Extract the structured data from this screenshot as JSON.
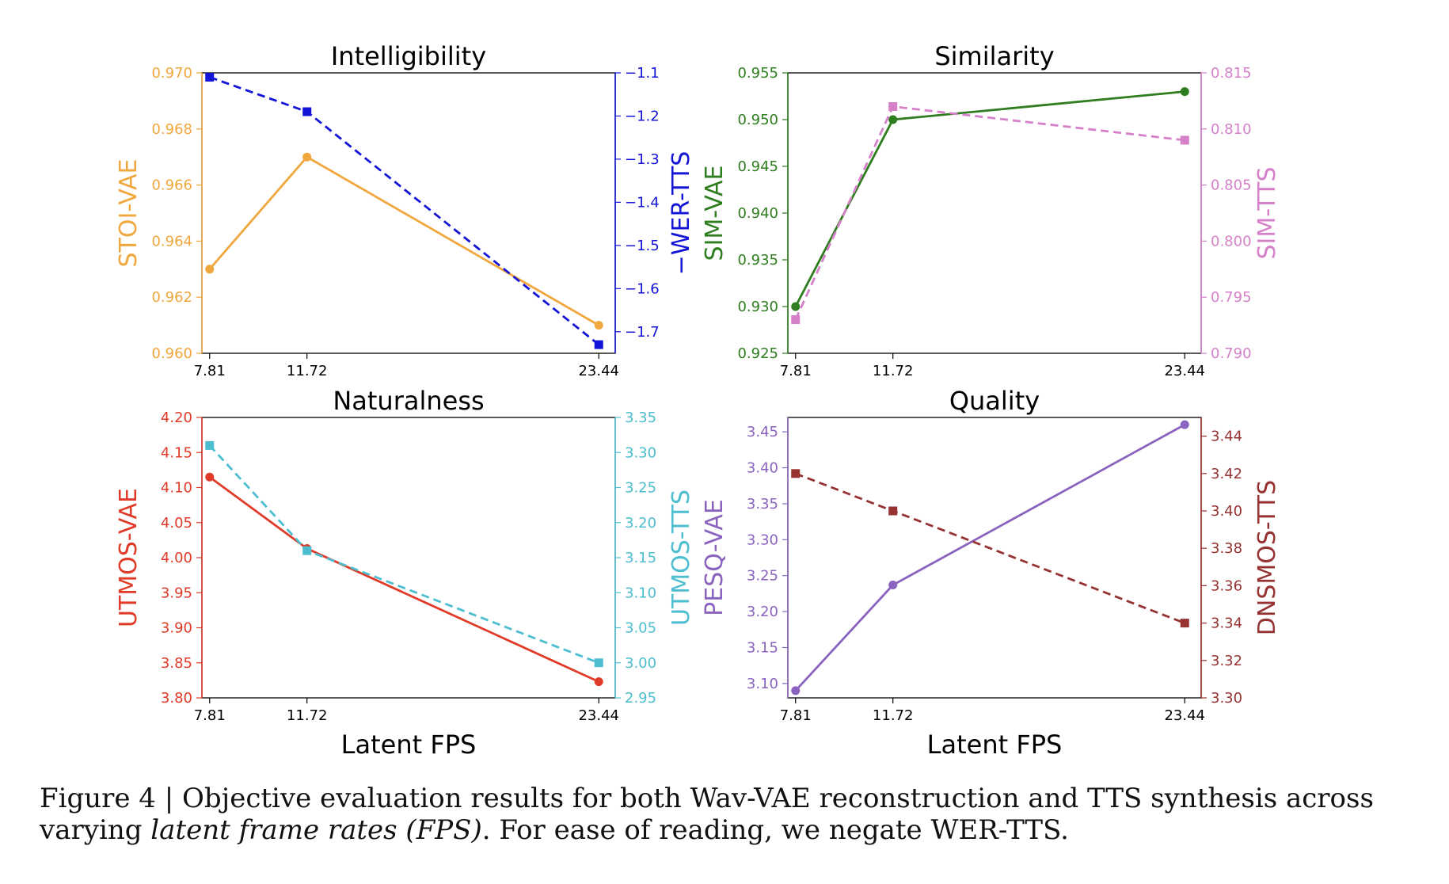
{
  "x_tick_labels": [
    "7.81",
    "11.72",
    "23.44"
  ],
  "x_values": [
    7.81,
    11.72,
    23.44
  ],
  "xlabel": "Latent FPS",
  "caption": {
    "lead": "Figure 4 | Objective evaluation results for both Wav-VAE reconstruction and TTS synthesis across varying ",
    "italic": "latent frame rates (FPS)",
    "tail": ". For ease of reading, we negate WER-TTS."
  },
  "chart_data": [
    {
      "type": "line",
      "title": "Intelligibility",
      "x": [
        7.81,
        11.72,
        23.44
      ],
      "xlim": [
        7.5,
        24.1
      ],
      "left": {
        "name": "STOI-VAE",
        "color": "#f0a73d",
        "dashed": false,
        "marker": "circle",
        "values": [
          0.963,
          0.967,
          0.961
        ],
        "ylim": [
          0.96,
          0.97
        ],
        "ticks": [
          0.96,
          0.962,
          0.964,
          0.966,
          0.968,
          0.97
        ],
        "tick_labels": [
          "0.960",
          "0.962",
          "0.964",
          "0.966",
          "0.968",
          "0.970"
        ]
      },
      "right": {
        "name": "−WER-TTS",
        "color": "#1414d6",
        "dashed": true,
        "marker": "square",
        "values": [
          -1.11,
          -1.19,
          -1.73
        ],
        "ylim": [
          -1.75,
          -1.1
        ],
        "ticks": [
          -1.1,
          -1.2,
          -1.3,
          -1.4,
          -1.5,
          -1.6,
          -1.7
        ],
        "tick_labels": [
          "−1.1",
          "−1.2",
          "−1.3",
          "−1.4",
          "−1.5",
          "−1.6",
          "−1.7"
        ]
      }
    },
    {
      "type": "line",
      "title": "Similarity",
      "x": [
        7.81,
        11.72,
        23.44
      ],
      "xlim": [
        7.5,
        24.1
      ],
      "left": {
        "name": "SIM-VAE",
        "color": "#2e7d1f",
        "dashed": false,
        "marker": "circle",
        "values": [
          0.93,
          0.95,
          0.953
        ],
        "ylim": [
          0.925,
          0.955
        ],
        "ticks": [
          0.925,
          0.93,
          0.935,
          0.94,
          0.945,
          0.95,
          0.955
        ],
        "tick_labels": [
          "0.925",
          "0.930",
          "0.935",
          "0.940",
          "0.945",
          "0.950",
          "0.955"
        ]
      },
      "right": {
        "name": "SIM-TTS",
        "color": "#d580c8",
        "dashed": true,
        "marker": "square",
        "values": [
          0.793,
          0.812,
          0.809
        ],
        "ylim": [
          0.79,
          0.815
        ],
        "ticks": [
          0.79,
          0.795,
          0.8,
          0.805,
          0.81,
          0.815
        ],
        "tick_labels": [
          "0.790",
          "0.795",
          "0.800",
          "0.805",
          "0.810",
          "0.815"
        ]
      }
    },
    {
      "type": "line",
      "title": "Naturalness",
      "x": [
        7.81,
        11.72,
        23.44
      ],
      "xlim": [
        7.5,
        24.1
      ],
      "left": {
        "name": "UTMOS-VAE",
        "color": "#e03a28",
        "dashed": false,
        "marker": "circle",
        "values": [
          4.115,
          4.013,
          3.823
        ],
        "ylim": [
          3.8,
          4.2
        ],
        "ticks": [
          3.8,
          3.85,
          3.9,
          3.95,
          4.0,
          4.05,
          4.1,
          4.15,
          4.2
        ],
        "tick_labels": [
          "3.80",
          "3.85",
          "3.90",
          "3.95",
          "4.00",
          "4.05",
          "4.10",
          "4.15",
          "4.20"
        ]
      },
      "right": {
        "name": "UTMOS-TTS",
        "color": "#4dbecf",
        "dashed": true,
        "marker": "square",
        "values": [
          3.31,
          3.16,
          3.0
        ],
        "ylim": [
          2.95,
          3.35
        ],
        "ticks": [
          2.95,
          3.0,
          3.05,
          3.1,
          3.15,
          3.2,
          3.25,
          3.3,
          3.35
        ],
        "tick_labels": [
          "2.95",
          "3.00",
          "3.05",
          "3.10",
          "3.15",
          "3.20",
          "3.25",
          "3.30",
          "3.35"
        ]
      }
    },
    {
      "type": "line",
      "title": "Quality",
      "x": [
        7.81,
        11.72,
        23.44
      ],
      "xlim": [
        7.5,
        24.1
      ],
      "left": {
        "name": "PESQ-VAE",
        "color": "#8a63be",
        "dashed": false,
        "marker": "circle",
        "values": [
          3.09,
          3.237,
          3.46
        ],
        "ylim": [
          3.08,
          3.47
        ],
        "ticks": [
          3.1,
          3.15,
          3.2,
          3.25,
          3.3,
          3.35,
          3.4,
          3.45
        ],
        "tick_labels": [
          "3.10",
          "3.15",
          "3.20",
          "3.25",
          "3.30",
          "3.35",
          "3.40",
          "3.45"
        ]
      },
      "right": {
        "name": "DNSMOS-TTS",
        "color": "#963232",
        "dashed": true,
        "marker": "square",
        "values": [
          3.42,
          3.4,
          3.34
        ],
        "ylim": [
          3.3,
          3.45
        ],
        "ticks": [
          3.3,
          3.32,
          3.34,
          3.36,
          3.38,
          3.4,
          3.42,
          3.44
        ],
        "tick_labels": [
          "3.30",
          "3.32",
          "3.34",
          "3.36",
          "3.38",
          "3.40",
          "3.42",
          "3.44"
        ]
      }
    }
  ]
}
